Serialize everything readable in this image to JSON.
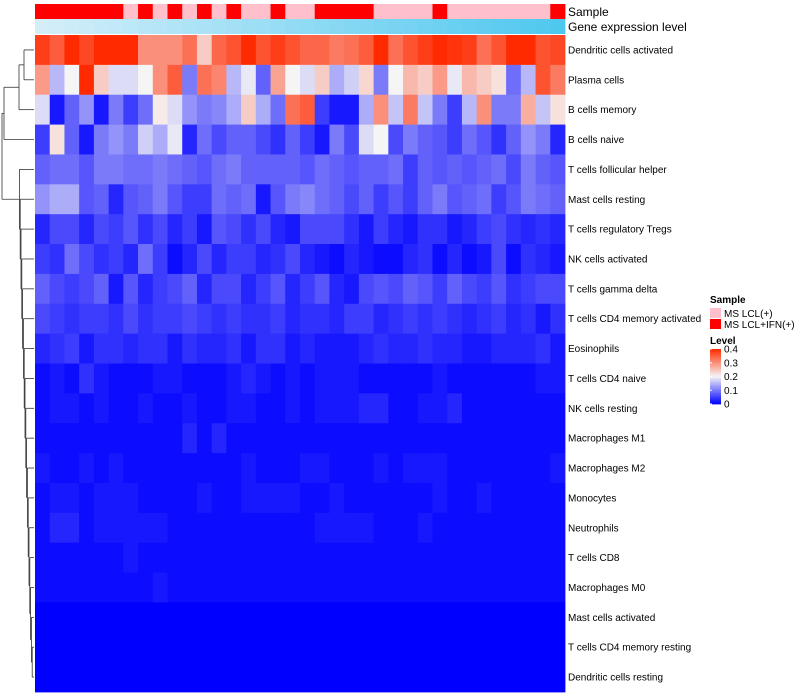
{
  "colors": {
    "low": "#0000FF",
    "mid": "#F5F5F5",
    "high": "#FF2A00",
    "sample_lcl": "#FFC0CB",
    "sample_lcl_ifn": "#FF0000",
    "expr_low": "#D4EEF8",
    "expr_high": "#4FC8F0"
  },
  "chart_data": {
    "type": "heatmap",
    "annotation_rows": [
      "Sample",
      "Gene expression level"
    ],
    "samples": [
      "MS LCL+IFN(+)",
      "MS LCL+IFN(+)",
      "MS LCL+IFN(+)",
      "MS LCL+IFN(+)",
      "MS LCL+IFN(+)",
      "MS LCL+IFN(+)",
      "MS LCL(+)",
      "MS LCL+IFN(+)",
      "MS LCL(+)",
      "MS LCL+IFN(+)",
      "MS LCL(+)",
      "MS LCL+IFN(+)",
      "MS LCL(+)",
      "MS LCL+IFN(+)",
      "MS LCL(+)",
      "MS LCL(+)",
      "MS LCL+IFN(+)",
      "MS LCL(+)",
      "MS LCL(+)",
      "MS LCL+IFN(+)",
      "MS LCL+IFN(+)",
      "MS LCL+IFN(+)",
      "MS LCL+IFN(+)",
      "MS LCL(+)",
      "MS LCL(+)",
      "MS LCL(+)",
      "MS LCL(+)",
      "MS LCL+IFN(+)",
      "MS LCL(+)",
      "MS LCL(+)",
      "MS LCL(+)",
      "MS LCL(+)",
      "MS LCL(+)",
      "MS LCL(+)",
      "MS LCL(+)",
      "MS LCL+IFN(+)"
    ],
    "expression_level": [
      0.0,
      0.03,
      0.06,
      0.09,
      0.11,
      0.14,
      0.17,
      0.2,
      0.23,
      0.26,
      0.29,
      0.31,
      0.34,
      0.37,
      0.4,
      0.43,
      0.46,
      0.49,
      0.51,
      0.54,
      0.57,
      0.6,
      0.63,
      0.66,
      0.69,
      0.71,
      0.74,
      0.77,
      0.8,
      0.83,
      0.86,
      0.89,
      0.91,
      0.94,
      0.97,
      1.0
    ],
    "rows": [
      "Dendritic cells activated",
      "Plasma cells",
      "B cells memory",
      "B cells naive",
      "T cells follicular helper",
      "Mast cells resting",
      "T cells regulatory  Tregs",
      "NK cells activated",
      "T cells gamma delta",
      "T cells CD4 memory activated",
      "Eosinophils",
      "T cells CD4 naive",
      "NK cells resting",
      "Macrophages M1",
      "Macrophages M2",
      "Monocytes",
      "Neutrophils",
      "T cells CD8",
      "Macrophages M0",
      "Mast cells activated",
      "T cells CD4 memory resting",
      "Dendritic cells resting"
    ],
    "values": [
      [
        0.38,
        0.35,
        0.4,
        0.37,
        0.42,
        0.42,
        0.42,
        0.3,
        0.3,
        0.3,
        0.33,
        0.24,
        0.34,
        0.36,
        0.4,
        0.36,
        0.38,
        0.36,
        0.34,
        0.34,
        0.32,
        0.33,
        0.35,
        0.42,
        0.33,
        0.36,
        0.38,
        0.4,
        0.39,
        0.38,
        0.33,
        0.36,
        0.4,
        0.42,
        0.36,
        0.37
      ],
      [
        0.29,
        0.15,
        0.2,
        0.4,
        0.24,
        0.18,
        0.18,
        0.2,
        0.3,
        0.35,
        0.1,
        0.33,
        0.31,
        0.15,
        0.19,
        0.08,
        0.28,
        0.2,
        0.18,
        0.24,
        0.14,
        0.17,
        0.23,
        0.1,
        0.2,
        0.26,
        0.24,
        0.29,
        0.19,
        0.26,
        0.24,
        0.22,
        0.09,
        0.15,
        0.36,
        0.32
      ],
      [
        0.18,
        0.02,
        0.08,
        0.12,
        0.02,
        0.1,
        0.05,
        0.09,
        0.21,
        0.18,
        0.12,
        0.1,
        0.11,
        0.14,
        0.24,
        0.14,
        0.09,
        0.33,
        0.35,
        0.05,
        0.02,
        0.02,
        0.14,
        0.3,
        0.16,
        0.32,
        0.16,
        0.1,
        0.05,
        0.15,
        0.3,
        0.1,
        0.1,
        0.27,
        0.16,
        0.22
      ],
      [
        0.05,
        0.22,
        0.08,
        0.02,
        0.1,
        0.12,
        0.1,
        0.17,
        0.14,
        0.19,
        0.03,
        0.09,
        0.06,
        0.08,
        0.08,
        0.06,
        0.04,
        0.08,
        0.05,
        0.02,
        0.1,
        0.06,
        0.18,
        0.2,
        0.06,
        0.1,
        0.08,
        0.07,
        0.05,
        0.09,
        0.07,
        0.04,
        0.08,
        0.12,
        0.1,
        0.03
      ],
      [
        0.08,
        0.09,
        0.09,
        0.07,
        0.1,
        0.1,
        0.09,
        0.09,
        0.1,
        0.09,
        0.08,
        0.07,
        0.09,
        0.1,
        0.08,
        0.08,
        0.08,
        0.08,
        0.07,
        0.09,
        0.08,
        0.07,
        0.08,
        0.08,
        0.09,
        0.05,
        0.08,
        0.07,
        0.08,
        0.07,
        0.08,
        0.09,
        0.06,
        0.1,
        0.08,
        0.07
      ],
      [
        0.12,
        0.14,
        0.14,
        0.07,
        0.08,
        0.03,
        0.07,
        0.08,
        0.1,
        0.07,
        0.05,
        0.05,
        0.09,
        0.08,
        0.09,
        0.02,
        0.07,
        0.1,
        0.11,
        0.09,
        0.08,
        0.06,
        0.08,
        0.05,
        0.07,
        0.05,
        0.08,
        0.1,
        0.07,
        0.08,
        0.09,
        0.05,
        0.07,
        0.1,
        0.09,
        0.08
      ],
      [
        0.03,
        0.06,
        0.06,
        0.03,
        0.06,
        0.05,
        0.07,
        0.04,
        0.06,
        0.03,
        0.05,
        0.02,
        0.07,
        0.06,
        0.04,
        0.06,
        0.03,
        0.02,
        0.06,
        0.06,
        0.06,
        0.04,
        0.02,
        0.05,
        0.03,
        0.02,
        0.04,
        0.04,
        0.02,
        0.03,
        0.05,
        0.06,
        0.04,
        0.03,
        0.04,
        0.03
      ],
      [
        0.05,
        0.04,
        0.09,
        0.06,
        0.04,
        0.05,
        0.03,
        0.09,
        0.05,
        0.01,
        0.03,
        0.06,
        0.03,
        0.05,
        0.05,
        0.03,
        0.04,
        0.06,
        0.03,
        0.02,
        0.01,
        0.03,
        0.02,
        0.01,
        0.01,
        0.03,
        0.04,
        0.01,
        0.03,
        0.01,
        0.02,
        0.06,
        0.01,
        0.04,
        0.03,
        0.02
      ],
      [
        0.08,
        0.06,
        0.05,
        0.06,
        0.08,
        0.02,
        0.07,
        0.03,
        0.05,
        0.06,
        0.08,
        0.03,
        0.06,
        0.06,
        0.03,
        0.05,
        0.07,
        0.03,
        0.05,
        0.07,
        0.03,
        0.02,
        0.06,
        0.07,
        0.06,
        0.08,
        0.07,
        0.05,
        0.08,
        0.06,
        0.05,
        0.07,
        0.04,
        0.05,
        0.06,
        0.06
      ],
      [
        0.06,
        0.05,
        0.04,
        0.05,
        0.05,
        0.04,
        0.06,
        0.04,
        0.05,
        0.05,
        0.06,
        0.05,
        0.04,
        0.05,
        0.04,
        0.04,
        0.05,
        0.03,
        0.04,
        0.04,
        0.03,
        0.05,
        0.05,
        0.03,
        0.04,
        0.05,
        0.04,
        0.05,
        0.04,
        0.03,
        0.04,
        0.05,
        0.03,
        0.04,
        0.02,
        0.04
      ],
      [
        0.03,
        0.04,
        0.05,
        0.02,
        0.04,
        0.04,
        0.03,
        0.04,
        0.04,
        0.02,
        0.04,
        0.03,
        0.03,
        0.04,
        0.02,
        0.04,
        0.04,
        0.02,
        0.03,
        0.02,
        0.02,
        0.02,
        0.03,
        0.04,
        0.03,
        0.03,
        0.04,
        0.03,
        0.03,
        0.02,
        0.02,
        0.03,
        0.03,
        0.03,
        0.04,
        0.02
      ],
      [
        0.01,
        0.02,
        0.01,
        0.04,
        0.02,
        0.01,
        0.01,
        0.01,
        0.02,
        0.02,
        0.01,
        0.01,
        0.01,
        0.02,
        0.03,
        0.02,
        0.01,
        0.02,
        0.01,
        0.02,
        0.02,
        0.02,
        0.01,
        0.01,
        0.01,
        0.01,
        0.01,
        0.02,
        0.01,
        0.01,
        0.01,
        0.01,
        0.01,
        0.01,
        0.02,
        0.02
      ],
      [
        0.01,
        0.02,
        0.02,
        0.01,
        0.02,
        0.01,
        0.01,
        0.02,
        0.01,
        0.01,
        0.02,
        0.01,
        0.01,
        0.02,
        0.02,
        0.01,
        0.01,
        0.02,
        0.01,
        0.02,
        0.02,
        0.02,
        0.03,
        0.03,
        0.01,
        0.01,
        0.02,
        0.02,
        0.03,
        0.01,
        0.01,
        0.01,
        0.01,
        0.01,
        0.01,
        0.01
      ],
      [
        0.01,
        0.01,
        0.01,
        0.01,
        0.01,
        0.01,
        0.01,
        0.01,
        0.01,
        0.01,
        0.03,
        0.01,
        0.03,
        0.01,
        0.01,
        0.01,
        0.01,
        0.01,
        0.01,
        0.01,
        0.01,
        0.01,
        0.01,
        0.01,
        0.01,
        0.01,
        0.01,
        0.01,
        0.01,
        0.01,
        0.01,
        0.01,
        0.01,
        0.01,
        0.01,
        0.01
      ],
      [
        0.02,
        0.01,
        0.01,
        0.02,
        0.01,
        0.02,
        0.01,
        0.01,
        0.01,
        0.01,
        0.01,
        0.01,
        0.01,
        0.01,
        0.02,
        0.01,
        0.01,
        0.01,
        0.02,
        0.02,
        0.01,
        0.01,
        0.01,
        0.02,
        0.01,
        0.02,
        0.02,
        0.02,
        0.01,
        0.01,
        0.01,
        0.01,
        0.01,
        0.01,
        0.01,
        0.02
      ],
      [
        0.01,
        0.02,
        0.02,
        0.01,
        0.02,
        0.02,
        0.02,
        0.01,
        0.01,
        0.01,
        0.01,
        0.02,
        0.01,
        0.01,
        0.02,
        0.02,
        0.02,
        0.02,
        0.01,
        0.01,
        0.02,
        0.01,
        0.01,
        0.01,
        0.01,
        0.01,
        0.01,
        0.02,
        0.01,
        0.01,
        0.02,
        0.01,
        0.01,
        0.01,
        0.01,
        0.01
      ],
      [
        0.01,
        0.03,
        0.03,
        0.01,
        0.02,
        0.02,
        0.02,
        0.02,
        0.02,
        0.01,
        0.01,
        0.01,
        0.01,
        0.01,
        0.01,
        0.01,
        0.01,
        0.01,
        0.01,
        0.02,
        0.02,
        0.02,
        0.02,
        0.01,
        0.01,
        0.01,
        0.02,
        0.01,
        0.01,
        0.01,
        0.01,
        0.01,
        0.01,
        0.01,
        0.01,
        0.01
      ],
      [
        0.01,
        0.01,
        0.01,
        0.01,
        0.01,
        0.01,
        0.02,
        0.01,
        0.01,
        0.01,
        0.01,
        0.01,
        0.01,
        0.01,
        0.01,
        0.01,
        0.01,
        0.01,
        0.01,
        0.01,
        0.01,
        0.01,
        0.01,
        0.01,
        0.01,
        0.01,
        0.01,
        0.01,
        0.01,
        0.01,
        0.01,
        0.01,
        0.01,
        0.01,
        0.01,
        0.01
      ],
      [
        0.01,
        0.01,
        0.01,
        0.01,
        0.01,
        0.01,
        0.01,
        0.01,
        0.02,
        0.01,
        0.01,
        0.01,
        0.01,
        0.01,
        0.01,
        0.01,
        0.01,
        0.01,
        0.01,
        0.01,
        0.01,
        0.01,
        0.01,
        0.01,
        0.01,
        0.01,
        0.01,
        0.01,
        0.01,
        0.01,
        0.01,
        0.01,
        0.01,
        0.01,
        0.01,
        0.01
      ],
      [
        0.0,
        0.0,
        0.0,
        0.0,
        0.0,
        0.0,
        0.0,
        0.0,
        0.0,
        0.0,
        0.0,
        0.0,
        0.0,
        0.0,
        0.0,
        0.0,
        0.0,
        0.0,
        0.0,
        0.0,
        0.0,
        0.0,
        0.0,
        0.0,
        0.0,
        0.0,
        0.0,
        0.0,
        0.0,
        0.0,
        0.0,
        0.0,
        0.0,
        0.0,
        0.0,
        0.0
      ],
      [
        0.0,
        0.0,
        0.0,
        0.0,
        0.0,
        0.0,
        0.0,
        0.0,
        0.0,
        0.0,
        0.0,
        0.0,
        0.0,
        0.0,
        0.0,
        0.0,
        0.0,
        0.0,
        0.0,
        0.0,
        0.0,
        0.0,
        0.0,
        0.0,
        0.0,
        0.0,
        0.0,
        0.0,
        0.0,
        0.0,
        0.0,
        0.0,
        0.0,
        0.0,
        0.0,
        0.0
      ],
      [
        0.0,
        0.0,
        0.0,
        0.0,
        0.0,
        0.0,
        0.0,
        0.0,
        0.0,
        0.0,
        0.0,
        0.0,
        0.0,
        0.0,
        0.0,
        0.0,
        0.0,
        0.0,
        0.0,
        0.0,
        0.0,
        0.0,
        0.0,
        0.0,
        0.0,
        0.0,
        0.0,
        0.0,
        0.0,
        0.0,
        0.0,
        0.0,
        0.0,
        0.0,
        0.0,
        0.0
      ]
    ],
    "color_range": [
      0,
      0.4
    ],
    "legend": {
      "sample_title": "Sample",
      "sample_items": [
        "MS LCL(+)",
        "MS LCL+IFN(+)"
      ],
      "level_title": "Level",
      "level_ticks": [
        "0.4",
        "0.3",
        "0.2",
        "0.1",
        "0"
      ],
      "level_tick_values": [
        0.4,
        0.3,
        0.2,
        0.1,
        0
      ]
    },
    "dendrogram_order": [
      0,
      1,
      2,
      3,
      4,
      5,
      6,
      7,
      8,
      9,
      10,
      11,
      12,
      13,
      14,
      15,
      16,
      17,
      18,
      19,
      20,
      21
    ]
  }
}
